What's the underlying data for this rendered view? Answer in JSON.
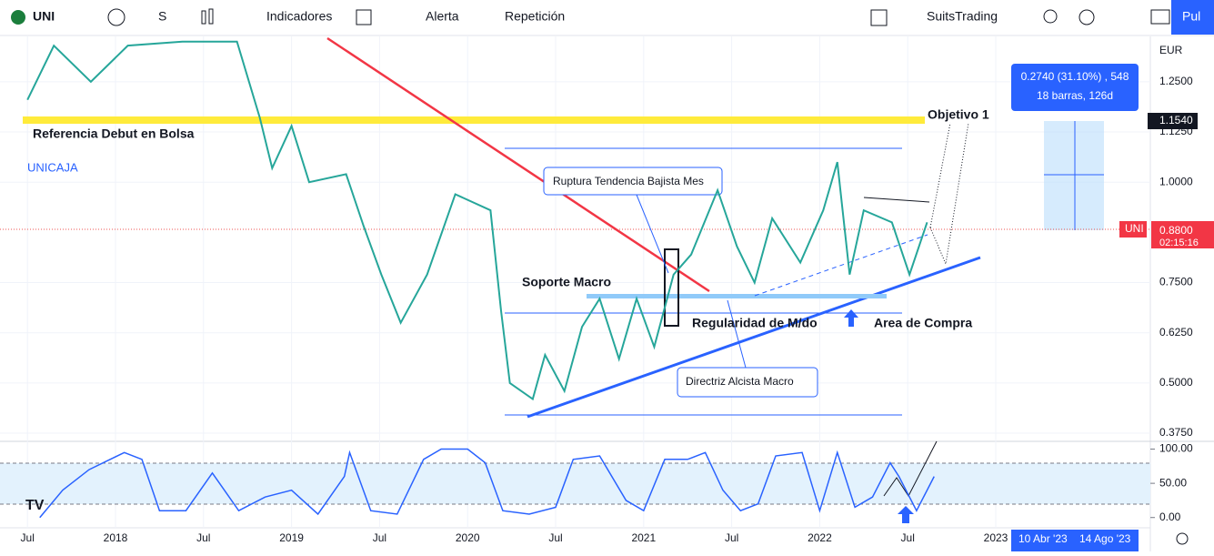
{
  "toolbar": {
    "symbol": "UNI",
    "interval": "S",
    "indicators": "Indicadores",
    "alert": "Alerta",
    "replay": "Repetición",
    "account": "SuitsTrading",
    "publish": "Pul"
  },
  "chart_data": {
    "type": "line",
    "annotations": {
      "debut": "Referencia Debut en Bolsa",
      "unicaja": "UNICAJA",
      "target": "Objetivo 1",
      "break": "Ruptura Tendencia Bajista Mes",
      "support": "Soporte Macro",
      "regularity": "Regularidad de M/do",
      "buy": "Area de Compra",
      "trend": "Directriz Alcista Macro"
    },
    "currency": "EUR",
    "measure": {
      "line1": "0.2740 (31.10%) , 548",
      "line2": "18 barras, 126d"
    },
    "price_labels": {
      "target": "1.1540",
      "symbol": "UNI",
      "last": "0.8800",
      "countdown": "02:15:16"
    },
    "range_labels": [
      "10 Abr '23",
      "14 Ago '23"
    ],
    "xlim": [
      2017.344,
      2023.878
    ],
    "ylim": [
      0.357,
      1.363
    ],
    "yticks": [
      {
        "value": 1.25,
        "label": "1.2500"
      },
      {
        "value": 1.125,
        "label": "1.1250"
      },
      {
        "value": 1,
        "label": "1.0000"
      },
      {
        "value": 0.75,
        "label": "0.7500"
      },
      {
        "value": 0.625,
        "label": "0.6250"
      },
      {
        "value": 0.5,
        "label": "0.5000"
      },
      {
        "value": 0.375,
        "label": "0.3750"
      }
    ],
    "xticks": [
      {
        "value": 2017.5,
        "label": "Jul"
      },
      2018,
      {
        "value": 2018.5,
        "label": "Jul"
      },
      2019,
      {
        "value": 2019.5,
        "label": "Jul"
      },
      2020,
      {
        "value": 2020.5,
        "label": "Jul"
      },
      2021,
      {
        "value": 2021.5,
        "label": "Jul"
      },
      2022,
      {
        "value": 2022.5,
        "label": "Jul"
      },
      2023
    ],
    "series": [
      {
        "name": "UNI",
        "color": "#26a69a",
        "x": [
          2017.5,
          2017.65,
          2017.86,
          2018.07,
          2018.38,
          2018.69,
          2018.82,
          2018.89,
          2019.0,
          2019.1,
          2019.31,
          2019.41,
          2019.51,
          2019.62,
          2019.77,
          2019.93,
          2020.13,
          2020.19,
          2020.24,
          2020.37,
          2020.44,
          2020.55,
          2020.65,
          2020.75,
          2020.86,
          2020.96,
          2021.06,
          2021.17,
          2021.27,
          2021.42,
          2021.53,
          2021.63,
          2021.73,
          2021.89,
          2022.02,
          2022.1,
          2022.17,
          2022.25,
          2022.41,
          2022.51,
          2022.61
        ],
        "values": [
          1.205,
          1.34,
          1.25,
          1.34,
          1.35,
          1.35,
          1.16,
          1.035,
          1.14,
          1.0,
          1.02,
          0.89,
          0.77,
          0.65,
          0.77,
          0.97,
          0.93,
          0.68,
          0.5,
          0.46,
          0.57,
          0.48,
          0.64,
          0.71,
          0.56,
          0.71,
          0.59,
          0.77,
          0.82,
          0.98,
          0.84,
          0.75,
          0.91,
          0.8,
          0.93,
          1.05,
          0.77,
          0.93,
          0.9,
          0.77,
          0.9
        ]
      }
    ],
    "oscillator": {
      "ylim": [
        -15,
        110
      ],
      "yticks": [
        {
          "value": 100,
          "label": "100.00"
        },
        {
          "value": 50,
          "label": "50.00"
        },
        {
          "value": 0,
          "label": "0.00"
        }
      ],
      "color": "#2962ff",
      "x": [
        2017.57,
        2017.7,
        2017.85,
        2018.05,
        2018.15,
        2018.25,
        2018.4,
        2018.55,
        2018.7,
        2018.85,
        2019.0,
        2019.15,
        2019.3,
        2019.33,
        2019.45,
        2019.6,
        2019.75,
        2019.85,
        2020.0,
        2020.1,
        2020.2,
        2020.35,
        2020.5,
        2020.6,
        2020.75,
        2020.9,
        2021.0,
        2021.12,
        2021.25,
        2021.35,
        2021.45,
        2021.55,
        2021.65,
        2021.75,
        2021.9,
        2022.0,
        2022.1,
        2022.2,
        2022.3,
        2022.4,
        2022.45,
        2022.55,
        2022.65
      ],
      "values": [
        0,
        40,
        70,
        95,
        85,
        10,
        10,
        65,
        10,
        30,
        40,
        5,
        60,
        95,
        10,
        5,
        85,
        100,
        100,
        80,
        10,
        5,
        15,
        85,
        90,
        25,
        10,
        85,
        85,
        95,
        40,
        10,
        20,
        90,
        95,
        10,
        95,
        15,
        30,
        80,
        60,
        10,
        60
      ]
    }
  }
}
